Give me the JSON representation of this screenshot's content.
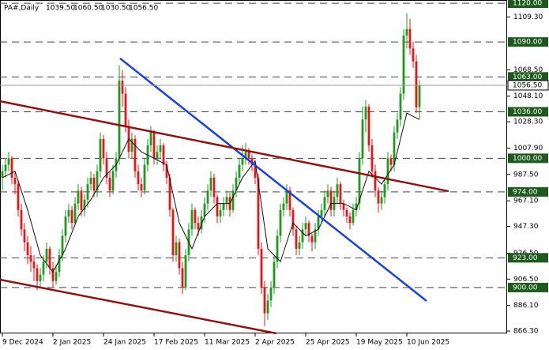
{
  "chart_data": {
    "type": "candlestick",
    "header": {
      "symbol": "PA#,Daily",
      "ohlc": [
        {
          "value": 1039.5,
          "label": "1039.50"
        },
        {
          "value": 1060.5,
          "label": "1060.50"
        },
        {
          "value": 1030.5,
          "label": "1030.50"
        },
        {
          "value": 1056.5,
          "label": "1056.50"
        }
      ]
    },
    "up_color": "#1f9a1f",
    "down_color": "#e8141c",
    "xlim": [
      -0.75,
      159.75
    ],
    "ylim": [
      864.5,
      1122.5
    ],
    "xticks": [
      {
        "value": 0,
        "label": "9 Dec 2024"
      },
      {
        "value": 16,
        "label": "2 Jan 2025"
      },
      {
        "value": 32,
        "label": "24 Jan 2025"
      },
      {
        "value": 48,
        "label": "17 Feb 2025"
      },
      {
        "value": 64,
        "label": "11 Mar 2025"
      },
      {
        "value": 80,
        "label": "2 Apr 2025"
      },
      {
        "value": 96,
        "label": "25 Apr 2025"
      },
      {
        "value": 112,
        "label": "19 May 2025"
      },
      {
        "value": 128,
        "label": "10 Jun 2025"
      }
    ],
    "yticks": [
      {
        "value": 1109.3,
        "label": "1109.30"
      },
      {
        "value": 1068.5,
        "label": "1068.50"
      },
      {
        "value": 1048.1,
        "label": "1048.10"
      },
      {
        "value": 1028.3,
        "label": "1028.30"
      },
      {
        "value": 1007.9,
        "label": "1007.90"
      },
      {
        "value": 987.5,
        "label": "987.50"
      },
      {
        "value": 967.1,
        "label": "967.10"
      },
      {
        "value": 947.3,
        "label": "947.30"
      },
      {
        "value": 926.5,
        "label": "926.50"
      },
      {
        "value": 906.5,
        "label": "906.50"
      },
      {
        "value": 886.1,
        "label": "886.10"
      },
      {
        "value": 866.3,
        "label": "866.30"
      }
    ],
    "levels": [
      {
        "value": 1120,
        "label": "1120.00"
      },
      {
        "value": 1090,
        "label": "1090.00"
      },
      {
        "value": 1063,
        "label": "1063.00"
      },
      {
        "value": 1036,
        "label": "1036.00"
      },
      {
        "value": 1000,
        "label": "1000.00"
      },
      {
        "value": 974,
        "label": "974.00"
      },
      {
        "value": 923,
        "label": "923.00"
      },
      {
        "value": 900,
        "label": "900.00"
      }
    ],
    "level_color": "#1e5a1e",
    "current_price": {
      "value": 1056.5,
      "label": "1056.50"
    },
    "trendlines": [
      {
        "color": "#1a3fd8",
        "x": [
          37.25,
          134.25
        ],
        "values": [
          1077.3,
          889.6
        ]
      },
      {
        "color": "#8b1414",
        "x": [
          -0.75,
          141.25
        ],
        "values": [
          1044.2,
          974.5
        ]
      },
      {
        "color": "#8b1414",
        "x": [
          -0.75,
          86.75
        ],
        "values": [
          906.1,
          864.5
        ]
      }
    ],
    "ma": {
      "color": "#111111",
      "x": [
        0,
        4,
        8,
        12,
        16,
        20,
        24,
        28,
        32,
        36,
        40,
        44,
        48,
        52,
        56,
        60,
        64,
        68,
        72,
        76,
        80,
        84,
        88,
        92,
        96,
        100,
        104,
        108,
        112,
        116,
        120,
        124,
        128,
        132
      ],
      "values": [
        985,
        990,
        960,
        925,
        912,
        930,
        955,
        968,
        985,
        995,
        1015,
        1005,
        1000,
        995,
        950,
        930,
        955,
        965,
        965,
        985,
        998,
        930,
        920,
        950,
        940,
        945,
        965,
        965,
        960,
        990,
        980,
        995,
        1035,
        1030
      ]
    },
    "ohlc": [
      [
        985,
        995,
        975,
        990
      ],
      [
        990,
        1000,
        985,
        995
      ],
      [
        995,
        1005,
        990,
        1000
      ],
      [
        1000,
        1002,
        980,
        985
      ],
      [
        985,
        990,
        972,
        980
      ],
      [
        980,
        983,
        955,
        960
      ],
      [
        960,
        965,
        940,
        945
      ],
      [
        945,
        950,
        928,
        935
      ],
      [
        935,
        940,
        918,
        925
      ],
      [
        925,
        932,
        912,
        920
      ],
      [
        920,
        925,
        905,
        915
      ],
      [
        915,
        918,
        898,
        905
      ],
      [
        905,
        915,
        900,
        910
      ],
      [
        910,
        925,
        905,
        920
      ],
      [
        920,
        935,
        915,
        930
      ],
      [
        930,
        932,
        910,
        915
      ],
      [
        915,
        920,
        900,
        905
      ],
      [
        905,
        918,
        902,
        912
      ],
      [
        912,
        930,
        908,
        925
      ],
      [
        925,
        945,
        920,
        940
      ],
      [
        940,
        960,
        935,
        955
      ],
      [
        955,
        965,
        950,
        960
      ],
      [
        960,
        963,
        945,
        950
      ],
      [
        950,
        970,
        948,
        965
      ],
      [
        965,
        980,
        960,
        975
      ],
      [
        975,
        978,
        955,
        960
      ],
      [
        960,
        972,
        955,
        968
      ],
      [
        968,
        985,
        962,
        980
      ],
      [
        980,
        990,
        975,
        985
      ],
      [
        985,
        988,
        970,
        975
      ],
      [
        975,
        995,
        970,
        990
      ],
      [
        990,
        1020,
        985,
        1015
      ],
      [
        1015,
        1018,
        995,
        1000
      ],
      [
        1000,
        1005,
        980,
        985
      ],
      [
        985,
        990,
        970,
        975
      ],
      [
        975,
        995,
        972,
        990
      ],
      [
        990,
        1005,
        985,
        1000
      ],
      [
        1000,
        1072,
        995,
        1060
      ],
      [
        1060,
        1068,
        1040,
        1050
      ],
      [
        1050,
        1055,
        1020,
        1025
      ],
      [
        1025,
        1030,
        1000,
        1005
      ],
      [
        1005,
        1020,
        1000,
        1015
      ],
      [
        1015,
        1018,
        985,
        990
      ],
      [
        990,
        995,
        975,
        980
      ],
      [
        980,
        985,
        970,
        975
      ],
      [
        975,
        1000,
        972,
        995
      ],
      [
        995,
        1015,
        990,
        1010
      ],
      [
        1010,
        1025,
        1005,
        1020
      ],
      [
        1020,
        1022,
        995,
        1000
      ],
      [
        1000,
        1010,
        995,
        1005
      ],
      [
        1005,
        1015,
        1000,
        1010
      ],
      [
        1010,
        1012,
        990,
        995
      ],
      [
        995,
        998,
        980,
        985
      ],
      [
        985,
        988,
        955,
        960
      ],
      [
        960,
        962,
        920,
        925
      ],
      [
        925,
        940,
        920,
        935
      ],
      [
        935,
        938,
        910,
        915
      ],
      [
        915,
        920,
        895,
        900
      ],
      [
        900,
        930,
        898,
        925
      ],
      [
        925,
        950,
        920,
        945
      ],
      [
        945,
        965,
        940,
        960
      ],
      [
        960,
        962,
        945,
        950
      ],
      [
        950,
        955,
        940,
        945
      ],
      [
        945,
        960,
        942,
        955
      ],
      [
        955,
        970,
        950,
        965
      ],
      [
        965,
        980,
        960,
        975
      ],
      [
        975,
        990,
        970,
        985
      ],
      [
        985,
        988,
        965,
        970
      ],
      [
        970,
        972,
        950,
        955
      ],
      [
        955,
        965,
        950,
        960
      ],
      [
        960,
        970,
        955,
        965
      ],
      [
        965,
        975,
        960,
        970
      ],
      [
        970,
        973,
        955,
        960
      ],
      [
        960,
        980,
        958,
        975
      ],
      [
        975,
        990,
        970,
        985
      ],
      [
        985,
        1000,
        980,
        995
      ],
      [
        995,
        1010,
        990,
        1000
      ],
      [
        1000,
        1012,
        995,
        1005
      ],
      [
        1005,
        1008,
        995,
        1000
      ],
      [
        1000,
        1003,
        990,
        995
      ],
      [
        995,
        998,
        980,
        985
      ],
      [
        985,
        988,
        925,
        930
      ],
      [
        930,
        935,
        895,
        900
      ],
      [
        900,
        905,
        870,
        880
      ],
      [
        880,
        895,
        875,
        890
      ],
      [
        890,
        905,
        885,
        900
      ],
      [
        900,
        925,
        895,
        920
      ],
      [
        920,
        945,
        915,
        940
      ],
      [
        940,
        965,
        935,
        960
      ],
      [
        960,
        970,
        955,
        965
      ],
      [
        965,
        980,
        960,
        975
      ],
      [
        975,
        978,
        955,
        960
      ],
      [
        960,
        962,
        940,
        945
      ],
      [
        945,
        948,
        925,
        930
      ],
      [
        930,
        940,
        925,
        935
      ],
      [
        935,
        950,
        930,
        945
      ],
      [
        945,
        955,
        940,
        950
      ],
      [
        950,
        952,
        935,
        940
      ],
      [
        940,
        942,
        928,
        935
      ],
      [
        935,
        950,
        930,
        945
      ],
      [
        945,
        960,
        940,
        955
      ],
      [
        955,
        965,
        950,
        960
      ],
      [
        960,
        975,
        955,
        970
      ],
      [
        970,
        980,
        965,
        975
      ],
      [
        975,
        978,
        955,
        960
      ],
      [
        960,
        975,
        955,
        970
      ],
      [
        970,
        985,
        965,
        980
      ],
      [
        980,
        982,
        960,
        965
      ],
      [
        965,
        968,
        955,
        960
      ],
      [
        960,
        962,
        950,
        955
      ],
      [
        955,
        958,
        945,
        950
      ],
      [
        950,
        965,
        948,
        960
      ],
      [
        960,
        970,
        955,
        965
      ],
      [
        965,
        1005,
        960,
        1000
      ],
      [
        1000,
        1040,
        995,
        1030
      ],
      [
        1030,
        1045,
        1020,
        1040
      ],
      [
        1040,
        1042,
        1005,
        1010
      ],
      [
        1010,
        1015,
        985,
        990
      ],
      [
        990,
        995,
        970,
        975
      ],
      [
        975,
        978,
        958,
        965
      ],
      [
        965,
        975,
        960,
        970
      ],
      [
        970,
        985,
        965,
        980
      ],
      [
        980,
        1005,
        975,
        1000
      ],
      [
        1000,
        1003,
        990,
        995
      ],
      [
        995,
        1025,
        990,
        1020
      ],
      [
        1020,
        1035,
        1015,
        1030
      ],
      [
        1030,
        1055,
        1025,
        1050
      ],
      [
        1050,
        1100,
        1045,
        1095
      ],
      [
        1095,
        1112,
        1085,
        1100
      ],
      [
        1100,
        1108,
        1080,
        1085
      ],
      [
        1085,
        1090,
        1070,
        1075
      ],
      [
        1075,
        1080,
        1035,
        1039.5
      ],
      [
        1039.5,
        1060.5,
        1030.5,
        1056.5
      ]
    ]
  }
}
